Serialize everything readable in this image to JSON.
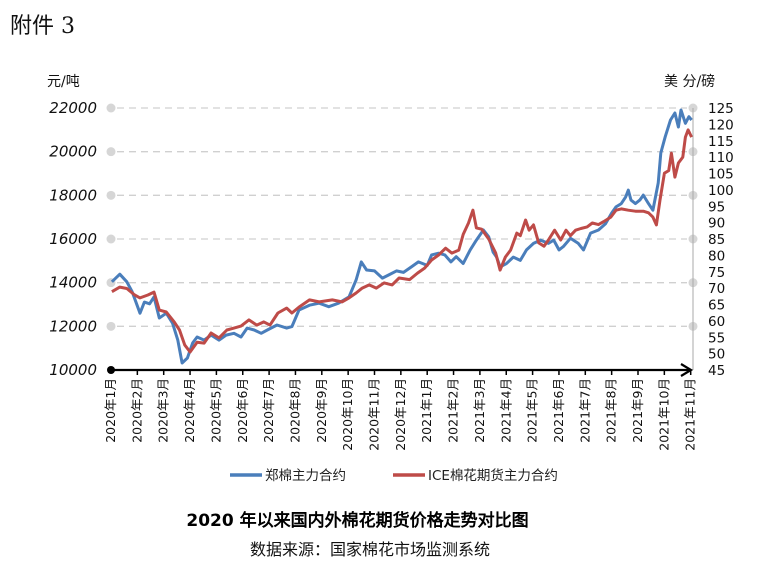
{
  "attachment_label": "附件 3",
  "chart_data": {
    "type": "line",
    "title": "2020 年以来国内外棉花期货价格走势对比图",
    "source": "数据来源：国家棉花市场监测系统",
    "y_left": {
      "label": "元/吨",
      "range": [
        10000,
        22000
      ],
      "ticks": [
        "10000",
        "12000",
        "14000",
        "16000",
        "18000",
        "20000",
        "22000"
      ]
    },
    "y_right": {
      "label": "美 分/磅",
      "range": [
        45,
        125
      ],
      "ticks": [
        "45",
        "50",
        "55",
        "60",
        "65",
        "70",
        "75",
        "80",
        "85",
        "90",
        "95",
        "100",
        "105",
        "110",
        "115",
        "120",
        "125"
      ]
    },
    "x_ticks": [
      "2020年1月",
      "2020年2月",
      "2020年3月",
      "2020年4月",
      "2020年5月",
      "2020年6月",
      "2020年7月",
      "2020年8月",
      "2020年9月",
      "2020年10月",
      "2020年11月",
      "2020年12月",
      "2021年1月",
      "2021年2月",
      "2021年3月",
      "2021年4月",
      "2021年5月",
      "2021年6月",
      "2021年7月",
      "2021年8月",
      "2021年9月",
      "2021年10月",
      "2021年11月"
    ],
    "grid": "horizontal dashed",
    "legend_position": "bottom",
    "series": [
      {
        "name": "郑棉主力合约",
        "axis": "left",
        "color": "#4a7ebb",
        "points": [
          [
            "2020-01-02",
            14040
          ],
          [
            "2020-01-11",
            14390
          ],
          [
            "2020-01-19",
            14040
          ],
          [
            "2020-01-25",
            13590
          ],
          [
            "2020-02-04",
            12600
          ],
          [
            "2020-02-09",
            13110
          ],
          [
            "2020-02-15",
            13030
          ],
          [
            "2020-02-20",
            13350
          ],
          [
            "2020-02-26",
            12380
          ],
          [
            "2020-03-04",
            12600
          ],
          [
            "2020-03-11",
            12150
          ],
          [
            "2020-03-17",
            11370
          ],
          [
            "2020-03-22",
            10320
          ],
          [
            "2020-03-28",
            10550
          ],
          [
            "2020-04-04",
            11240
          ],
          [
            "2020-04-09",
            11510
          ],
          [
            "2020-04-17",
            11370
          ],
          [
            "2020-04-25",
            11600
          ],
          [
            "2020-05-04",
            11370
          ],
          [
            "2020-05-12",
            11600
          ],
          [
            "2020-05-21",
            11680
          ],
          [
            "2020-05-29",
            11510
          ],
          [
            "2020-06-06",
            11920
          ],
          [
            "2020-06-14",
            11830
          ],
          [
            "2020-06-22",
            11680
          ],
          [
            "2020-06-29",
            11830
          ],
          [
            "2020-07-10",
            12060
          ],
          [
            "2020-07-21",
            11920
          ],
          [
            "2020-07-27",
            11990
          ],
          [
            "2020-08-05",
            12750
          ],
          [
            "2020-08-17",
            12970
          ],
          [
            "2020-08-28",
            13060
          ],
          [
            "2020-09-09",
            12900
          ],
          [
            "2020-09-20",
            13060
          ],
          [
            "2020-10-02",
            13350
          ],
          [
            "2020-10-10",
            14120
          ],
          [
            "2020-10-16",
            14950
          ],
          [
            "2020-10-22",
            14580
          ],
          [
            "2020-11-01",
            14540
          ],
          [
            "2020-11-10",
            14210
          ],
          [
            "2020-11-17",
            14350
          ],
          [
            "2020-11-26",
            14540
          ],
          [
            "2020-12-04",
            14470
          ],
          [
            "2020-12-13",
            14720
          ],
          [
            "2020-12-21",
            14950
          ],
          [
            "2021-01-01",
            14790
          ],
          [
            "2021-01-06",
            15270
          ],
          [
            "2021-01-14",
            15350
          ],
          [
            "2021-01-21",
            15270
          ],
          [
            "2021-01-28",
            14950
          ],
          [
            "2021-02-04",
            15190
          ],
          [
            "2021-02-12",
            14880
          ],
          [
            "2021-02-20",
            15500
          ],
          [
            "2021-02-27",
            15950
          ],
          [
            "2021-03-05",
            16410
          ],
          [
            "2021-03-11",
            16100
          ],
          [
            "2021-03-16",
            15400
          ],
          [
            "2021-03-20",
            15170
          ],
          [
            "2021-03-24",
            14720
          ],
          [
            "2021-04-01",
            14870
          ],
          [
            "2021-04-09",
            15170
          ],
          [
            "2021-04-17",
            15020
          ],
          [
            "2021-04-24",
            15500
          ],
          [
            "2021-05-02",
            15800
          ],
          [
            "2021-05-10",
            15950
          ],
          [
            "2021-05-19",
            15800
          ],
          [
            "2021-05-25",
            15950
          ],
          [
            "2021-06-01",
            15500
          ],
          [
            "2021-06-06",
            15650
          ],
          [
            "2021-06-14",
            16030
          ],
          [
            "2021-06-23",
            15800
          ],
          [
            "2021-06-29",
            15500
          ],
          [
            "2021-07-07",
            16270
          ],
          [
            "2021-07-16",
            16410
          ],
          [
            "2021-07-24",
            16700
          ],
          [
            "2021-08-01",
            17190
          ],
          [
            "2021-08-06",
            17470
          ],
          [
            "2021-08-12",
            17620
          ],
          [
            "2021-08-17",
            17930
          ],
          [
            "2021-08-20",
            18240
          ],
          [
            "2021-08-23",
            17780
          ],
          [
            "2021-08-28",
            17620
          ],
          [
            "2021-09-03",
            17780
          ],
          [
            "2021-09-07",
            18010
          ],
          [
            "2021-09-13",
            17620
          ],
          [
            "2021-09-18",
            17320
          ],
          [
            "2021-09-24",
            18560
          ],
          [
            "2021-09-27",
            19940
          ],
          [
            "2021-10-02",
            20680
          ],
          [
            "2021-10-08",
            21450
          ],
          [
            "2021-10-13",
            21770
          ],
          [
            "2021-10-17",
            21130
          ],
          [
            "2021-10-20",
            21910
          ],
          [
            "2021-10-25",
            21300
          ],
          [
            "2021-10-29",
            21600
          ],
          [
            "2021-11-02",
            21450
          ]
        ]
      },
      {
        "name": "ICE棉花期货主力合约",
        "axis": "right",
        "color": "#be4b48",
        "points": [
          [
            "2020-01-02",
            68.9
          ],
          [
            "2020-01-11",
            70.3
          ],
          [
            "2020-01-19",
            69.9
          ],
          [
            "2020-01-28",
            67.9
          ],
          [
            "2020-02-04",
            67.0
          ],
          [
            "2020-02-13",
            67.9
          ],
          [
            "2020-02-20",
            68.8
          ],
          [
            "2020-02-26",
            63.3
          ],
          [
            "2020-03-04",
            62.7
          ],
          [
            "2020-03-13",
            59.7
          ],
          [
            "2020-03-19",
            57.2
          ],
          [
            "2020-03-25",
            52.6
          ],
          [
            "2020-03-31",
            50.5
          ],
          [
            "2020-04-09",
            53.5
          ],
          [
            "2020-04-17",
            53.2
          ],
          [
            "2020-04-25",
            56.3
          ],
          [
            "2020-05-04",
            54.8
          ],
          [
            "2020-05-13",
            57.2
          ],
          [
            "2020-05-21",
            57.8
          ],
          [
            "2020-05-29",
            58.4
          ],
          [
            "2020-06-08",
            60.3
          ],
          [
            "2020-06-17",
            58.7
          ],
          [
            "2020-06-25",
            59.7
          ],
          [
            "2020-07-02",
            58.7
          ],
          [
            "2020-07-11",
            62.4
          ],
          [
            "2020-07-21",
            63.9
          ],
          [
            "2020-07-27",
            62.4
          ],
          [
            "2020-08-05",
            64.2
          ],
          [
            "2020-08-17",
            66.4
          ],
          [
            "2020-08-28",
            65.8
          ],
          [
            "2020-09-13",
            66.4
          ],
          [
            "2020-09-24",
            65.8
          ],
          [
            "2020-10-02",
            67.0
          ],
          [
            "2020-10-10",
            68.5
          ],
          [
            "2020-10-17",
            70.0
          ],
          [
            "2020-10-25",
            71.0
          ],
          [
            "2020-11-03",
            70.0
          ],
          [
            "2020-11-12",
            71.6
          ],
          [
            "2020-11-21",
            71.0
          ],
          [
            "2020-11-29",
            73.1
          ],
          [
            "2020-12-11",
            72.6
          ],
          [
            "2020-12-20",
            74.6
          ],
          [
            "2020-12-28",
            76.1
          ],
          [
            "2021-01-06",
            78.6
          ],
          [
            "2021-01-14",
            80.1
          ],
          [
            "2021-01-22",
            82.2
          ],
          [
            "2021-01-29",
            80.7
          ],
          [
            "2021-02-07",
            81.6
          ],
          [
            "2021-02-12",
            86.4
          ],
          [
            "2021-02-18",
            89.9
          ],
          [
            "2021-02-23",
            93.8
          ],
          [
            "2021-02-27",
            88.4
          ],
          [
            "2021-03-03",
            88.0
          ],
          [
            "2021-03-11",
            85.0
          ],
          [
            "2021-03-19",
            80.7
          ],
          [
            "2021-03-24",
            75.5
          ],
          [
            "2021-03-30",
            79.5
          ],
          [
            "2021-04-06",
            81.6
          ],
          [
            "2021-04-13",
            86.8
          ],
          [
            "2021-04-17",
            86.0
          ],
          [
            "2021-04-23",
            90.8
          ],
          [
            "2021-04-27",
            87.7
          ],
          [
            "2021-05-02",
            89.3
          ],
          [
            "2021-05-08",
            83.8
          ],
          [
            "2021-05-14",
            82.8
          ],
          [
            "2021-05-19",
            84.7
          ],
          [
            "2021-05-26",
            87.7
          ],
          [
            "2021-06-03",
            84.7
          ],
          [
            "2021-06-09",
            87.7
          ],
          [
            "2021-06-14",
            86.0
          ],
          [
            "2021-06-20",
            87.7
          ],
          [
            "2021-06-26",
            88.2
          ],
          [
            "2021-07-03",
            88.7
          ],
          [
            "2021-07-09",
            89.9
          ],
          [
            "2021-07-16",
            89.4
          ],
          [
            "2021-07-22",
            90.3
          ],
          [
            "2021-07-30",
            91.7
          ],
          [
            "2021-08-06",
            93.8
          ],
          [
            "2021-08-12",
            94.2
          ],
          [
            "2021-08-20",
            93.8
          ],
          [
            "2021-08-28",
            93.5
          ],
          [
            "2021-09-07",
            93.5
          ],
          [
            "2021-09-13",
            93.0
          ],
          [
            "2021-09-18",
            91.7
          ],
          [
            "2021-09-22",
            89.3
          ],
          [
            "2021-09-26",
            96.9
          ],
          [
            "2021-10-01",
            105.1
          ],
          [
            "2021-10-06",
            105.9
          ],
          [
            "2021-10-09",
            111.2
          ],
          [
            "2021-10-13",
            103.9
          ],
          [
            "2021-10-17",
            108.2
          ],
          [
            "2021-10-22",
            110.0
          ],
          [
            "2021-10-25",
            116.1
          ],
          [
            "2021-10-28",
            118.3
          ],
          [
            "2021-11-02",
            116.1
          ]
        ]
      }
    ]
  }
}
